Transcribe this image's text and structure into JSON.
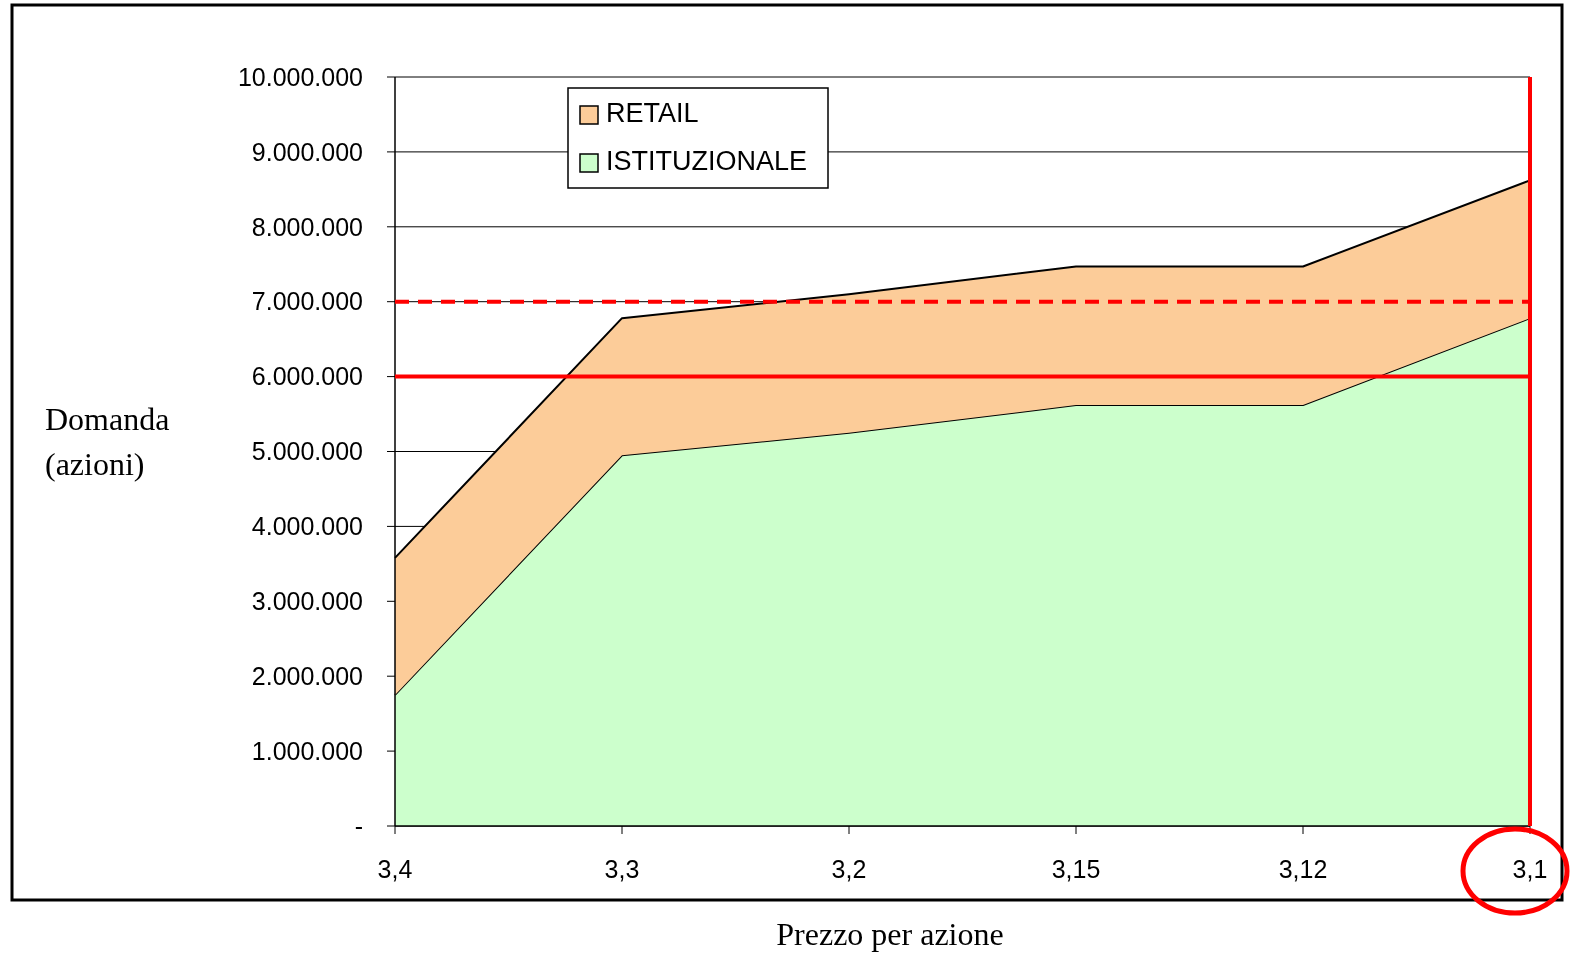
{
  "chart_data": {
    "type": "area",
    "stacked": true,
    "xlabel": "Prezzo per azione",
    "ylabel": "Domanda (azioni)",
    "categories": [
      "3,4",
      "3,3",
      "3,2",
      "3,15",
      "3,12",
      "3,1"
    ],
    "series": [
      {
        "name": "ISTITUZIONALE",
        "color": "#ccffcc",
        "values": [
          1750000,
          4950000,
          5250000,
          5620000,
          5620000,
          6780000
        ]
      },
      {
        "name": "RETAIL",
        "color": "#fccc99",
        "values": [
          1830000,
          1830000,
          1850000,
          1850000,
          1850000,
          1840000
        ]
      }
    ],
    "ylim": [
      0,
      10000000
    ],
    "yticks": [
      {
        "value": 0,
        "label": "-"
      },
      {
        "value": 1000000,
        "label": "1.000.000"
      },
      {
        "value": 2000000,
        "label": "2.000.000"
      },
      {
        "value": 3000000,
        "label": "3.000.000"
      },
      {
        "value": 4000000,
        "label": "4.000.000"
      },
      {
        "value": 5000000,
        "label": "5.000.000"
      },
      {
        "value": 6000000,
        "label": "6.000.000"
      },
      {
        "value": 7000000,
        "label": "7.000.000"
      },
      {
        "value": 8000000,
        "label": "8.000.000"
      },
      {
        "value": 9000000,
        "label": "9.000.000"
      },
      {
        "value": 10000000,
        "label": "10.000.000"
      }
    ],
    "ref_lines": [
      {
        "axis": "y",
        "value": 7000000,
        "color": "#ff0000",
        "line_style": "dashed"
      },
      {
        "axis": "y",
        "value": 6000000,
        "color": "#ff0000",
        "line_style": "solid"
      },
      {
        "axis": "x",
        "value": "3,1",
        "color": "#ff0000",
        "line_style": "solid"
      }
    ],
    "grid": "y",
    "legend": "top left"
  }
}
